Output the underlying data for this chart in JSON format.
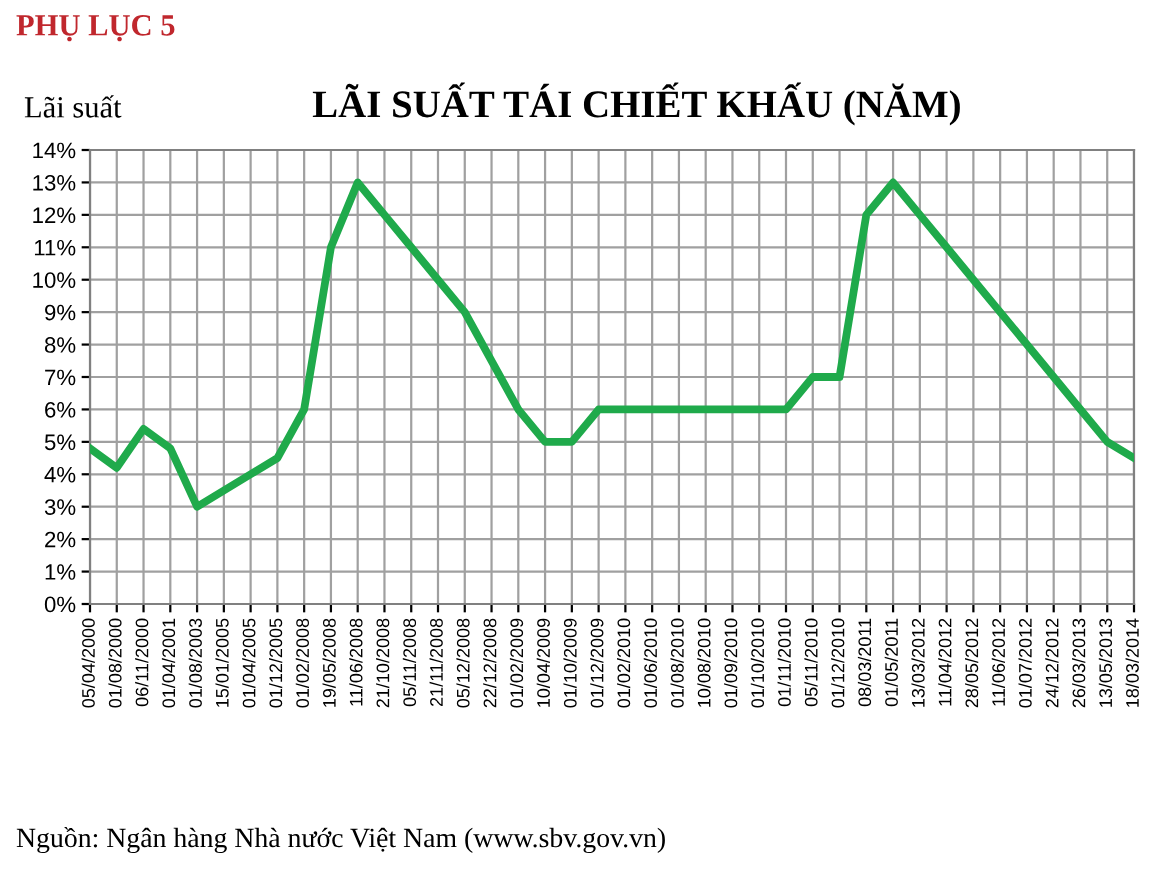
{
  "chart_data": {
    "type": "line",
    "title": "LÃI SUẤT TÁI CHIẾT KHẤU (NĂM)",
    "ylabel": "Lãi suất",
    "annotations": [
      "PHỤ LỤC 5",
      "Nguồn: Ngân hàng Nhà nước Việt Nam (www.sbv.gov.vn)"
    ],
    "categories": [
      "05/04/2000",
      "01/08/2000",
      "06/11/2000",
      "01/04/2001",
      "01/08/2003",
      "15/01/2005",
      "01/04/2005",
      "01/12/2005",
      "01/02/2008",
      "19/05/2008",
      "11/06/2008",
      "21/10/2008",
      "05/11/2008",
      "21/11/2008",
      "05/12/2008",
      "22/12/2008",
      "01/02/2009",
      "10/04/2009",
      "01/10/2009",
      "01/12/2009",
      "01/02/2010",
      "01/06/2010",
      "01/08/2010",
      "10/08/2010",
      "01/09/2010",
      "01/10/2010",
      "01/11/2010",
      "05/11/2010",
      "01/12/2010",
      "08/03/2011",
      "01/05/2011",
      "13/03/2012",
      "11/04/2012",
      "28/05/2012",
      "11/06/2012",
      "01/07/2012",
      "24/12/2012",
      "26/03/2013",
      "13/05/2013",
      "18/03/2014"
    ],
    "series": [
      {
        "color": "#1faa4b",
        "values": [
          4.8,
          4.2,
          5.4,
          4.8,
          3,
          3.5,
          4,
          4.5,
          6,
          11,
          13,
          12,
          11,
          10,
          9,
          7.5,
          6,
          5,
          5,
          6,
          6,
          6,
          6,
          6,
          6,
          6,
          6,
          7,
          7,
          12,
          13,
          12,
          11,
          10,
          9,
          8,
          7,
          6,
          5,
          4.5
        ]
      }
    ],
    "ylim": [
      0,
      14
    ],
    "yticks": [
      {
        "value": 0,
        "label": "0%"
      },
      {
        "value": 1,
        "label": "1%"
      },
      {
        "value": 2,
        "label": "2%"
      },
      {
        "value": 3,
        "label": "3%"
      },
      {
        "value": 4,
        "label": "4%"
      },
      {
        "value": 5,
        "label": "5%"
      },
      {
        "value": 6,
        "label": "6%"
      },
      {
        "value": 7,
        "label": "7%"
      },
      {
        "value": 8,
        "label": "8%"
      },
      {
        "value": 9,
        "label": "9%"
      },
      {
        "value": 10,
        "label": "10%"
      },
      {
        "value": 11,
        "label": "11%"
      },
      {
        "value": 12,
        "label": "12%"
      },
      {
        "value": 13,
        "label": "13%"
      },
      {
        "value": 14,
        "label": "14%"
      }
    ],
    "grid": true,
    "line_style": "solid",
    "marker": "none"
  }
}
